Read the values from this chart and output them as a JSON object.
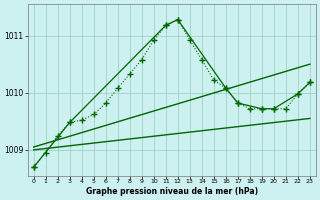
{
  "title": "Graphe pression niveau de la mer (hPa)",
  "background_color": "#cdf0f0",
  "grid_color": "#99ccbb",
  "line_color": "#006600",
  "xlim": [
    -0.5,
    23.5
  ],
  "ylim": [
    1008.55,
    1011.55
  ],
  "yticks": [
    1009,
    1010,
    1011
  ],
  "xticks": [
    0,
    1,
    2,
    3,
    4,
    5,
    6,
    7,
    8,
    9,
    10,
    11,
    12,
    13,
    14,
    15,
    16,
    17,
    18,
    19,
    20,
    21,
    22,
    23
  ],
  "hours": [
    0,
    1,
    2,
    3,
    4,
    5,
    6,
    7,
    8,
    9,
    10,
    11,
    12,
    13,
    14,
    15,
    16,
    17,
    18,
    19,
    20,
    21,
    22,
    23
  ],
  "pressure_dotted": [
    1008.7,
    1008.95,
    1009.25,
    1009.48,
    1009.52,
    1009.62,
    1009.82,
    1010.08,
    1010.33,
    1010.58,
    1010.92,
    1011.18,
    1011.28,
    1010.92,
    1010.58,
    1010.22,
    1010.08,
    1009.82,
    1009.72,
    1009.72,
    1009.72,
    1009.72,
    1009.98,
    1010.18
  ],
  "pressure_line1_x": [
    0,
    23
  ],
  "pressure_line1_y": [
    1009.0,
    1009.55
  ],
  "pressure_line2_x": [
    0,
    23
  ],
  "pressure_line2_y": [
    1009.05,
    1010.5
  ],
  "pressure_triangle_x": [
    0,
    3,
    11,
    12,
    16,
    17,
    19,
    20,
    22,
    23
  ],
  "pressure_triangle_y": [
    1008.7,
    1009.48,
    1011.18,
    1011.28,
    1010.08,
    1009.82,
    1009.72,
    1009.72,
    1009.98,
    1010.18
  ]
}
